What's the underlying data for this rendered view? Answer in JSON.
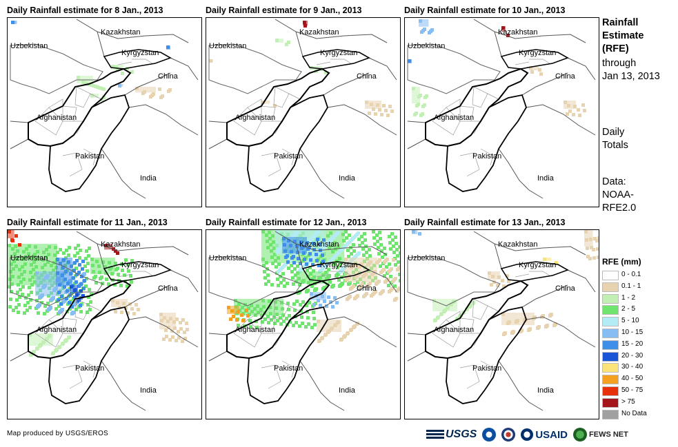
{
  "panels": [
    {
      "title": "Daily Rainfall estimate for 8 Jan., 2013"
    },
    {
      "title": "Daily Rainfall estimate for 9 Jan., 2013"
    },
    {
      "title": "Daily Rainfall estimate for 10 Jan., 2013"
    },
    {
      "title": "Daily Rainfall estimate for 11 Jan., 2013"
    },
    {
      "title": "Daily Rainfall estimate for 12 Jan., 2013"
    },
    {
      "title": "Daily Rainfall estimate for 13 Jan., 2013"
    }
  ],
  "map_labels": {
    "kazakhstan": "Kazakhstan",
    "uzbekistan": "Uzbekistan",
    "kyrgyzstan": "Kyrgyzstan",
    "china": "China",
    "afghanistan": "Afghanistan",
    "pakistan": "Pakistan",
    "india": "India"
  },
  "sidebar": {
    "title_lines": [
      "Rainfall",
      "Estimate",
      "(RFE)"
    ],
    "through_lines": [
      "through",
      "Jan 13, 2013"
    ],
    "totals_lines": [
      "Daily",
      "Totals"
    ],
    "data_lines": [
      "Data:",
      "NOAA-",
      "RFE2.0"
    ]
  },
  "legend": {
    "title": "RFE (mm)",
    "items": [
      {
        "label": "0 - 0.1",
        "color": "#ffffff"
      },
      {
        "label": "0.1 - 1",
        "color": "#e8d3b0"
      },
      {
        "label": "1 - 2",
        "color": "#c2f0b4"
      },
      {
        "label": "2 - 5",
        "color": "#6fe46f"
      },
      {
        "label": "5 - 10",
        "color": "#b3ecf4"
      },
      {
        "label": "10 - 15",
        "color": "#86bdf2"
      },
      {
        "label": "15 - 20",
        "color": "#3f8ee8"
      },
      {
        "label": "20 - 30",
        "color": "#1a55d8"
      },
      {
        "label": "30 - 40",
        "color": "#fbe37a"
      },
      {
        "label": "40 - 50",
        "color": "#f5a020"
      },
      {
        "label": "50 - 75",
        "color": "#e8300c"
      },
      {
        "label": "> 75",
        "color": "#a4161a"
      },
      {
        "label": "No Data",
        "color": "#a0a0a0"
      }
    ]
  },
  "credit": "Map produced by USGS/EROS",
  "logos": {
    "usgs": "USGS",
    "usaid": "USAID",
    "fews": "FEWS NET"
  }
}
